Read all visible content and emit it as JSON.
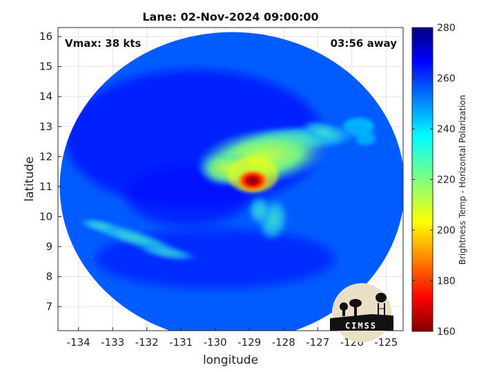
{
  "chart_data": {
    "type": "heatmap",
    "title": "Lane: 02-Nov-2024 09:00:00",
    "xlabel": "longitude",
    "ylabel": "latitude",
    "xlim": [
      -134.6,
      -124.5
    ],
    "ylim": [
      6.2,
      16.3
    ],
    "xticks": [
      -134,
      -133,
      -132,
      -131,
      -130,
      -129,
      -128,
      -127,
      -126,
      -125
    ],
    "yticks": [
      7,
      8,
      9,
      10,
      11,
      12,
      13,
      14,
      15,
      16
    ],
    "grid": true,
    "colorbar": {
      "label": "Brightness Temp - Horizontal Polarization",
      "min": 160,
      "max": 280,
      "ticks": [
        160,
        180,
        200,
        220,
        240,
        260,
        280
      ],
      "colormap": "jet"
    },
    "annotations": {
      "vmax": "Vmax: 38 kts",
      "time_offset": "03:56 away"
    },
    "swath": {
      "center_lon": -129.5,
      "center_lat": 11.0,
      "radius_lon": 5.05,
      "radius_lat": 5.15
    },
    "features": [
      {
        "name": "warm-core",
        "lon": -128.9,
        "lat": 11.2,
        "value": 165
      },
      {
        "name": "inner-ring",
        "lon": -128.9,
        "lat": 11.4,
        "value": 205
      },
      {
        "name": "convective-shield",
        "lon": -128.6,
        "lat": 12.0,
        "value": 232
      },
      {
        "name": "north-band",
        "lon": -127.5,
        "lat": 12.6,
        "value": 238
      },
      {
        "name": "southwest-band",
        "lon": -132.4,
        "lat": 9.3,
        "value": 240
      },
      {
        "name": "south-band",
        "lon": -128.3,
        "lat": 9.9,
        "value": 243
      },
      {
        "name": "northeast-cells",
        "lon": -125.8,
        "lat": 13.0,
        "value": 242
      },
      {
        "name": "background",
        "value": 256
      },
      {
        "name": "dry-ring",
        "value": 265
      }
    ]
  },
  "logo": {
    "text": "CIMSS"
  }
}
